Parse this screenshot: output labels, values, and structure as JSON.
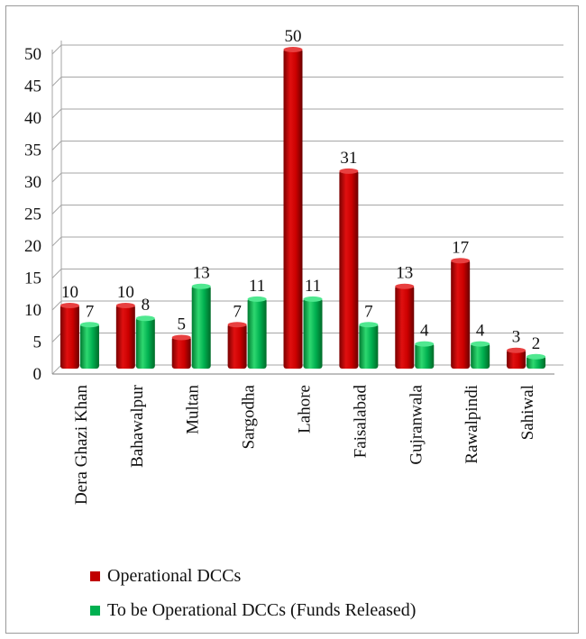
{
  "chart_data": {
    "type": "bar",
    "categories": [
      "Dera Ghazi Khan",
      "Bahawalpur",
      "Multan",
      "Sargodha",
      "Lahore",
      "Faisalabad",
      "Gujranwala",
      "Rawalpindi",
      "Sahiwal"
    ],
    "series": [
      {
        "name": "Operational DCCs",
        "values": [
          10,
          10,
          5,
          7,
          50,
          31,
          13,
          17,
          3
        ],
        "color": "#c00000"
      },
      {
        "name": "To be Operational DCCs (Funds Released)",
        "values": [
          7,
          8,
          13,
          11,
          11,
          7,
          4,
          4,
          2
        ],
        "color": "#00b050"
      }
    ],
    "y_ticks": [
      "0",
      "5",
      "10",
      "15",
      "20",
      "25",
      "30",
      "35",
      "40",
      "45",
      "50"
    ],
    "ylim": [
      0,
      50
    ],
    "grid": true,
    "legend_position": "bottom-left"
  }
}
